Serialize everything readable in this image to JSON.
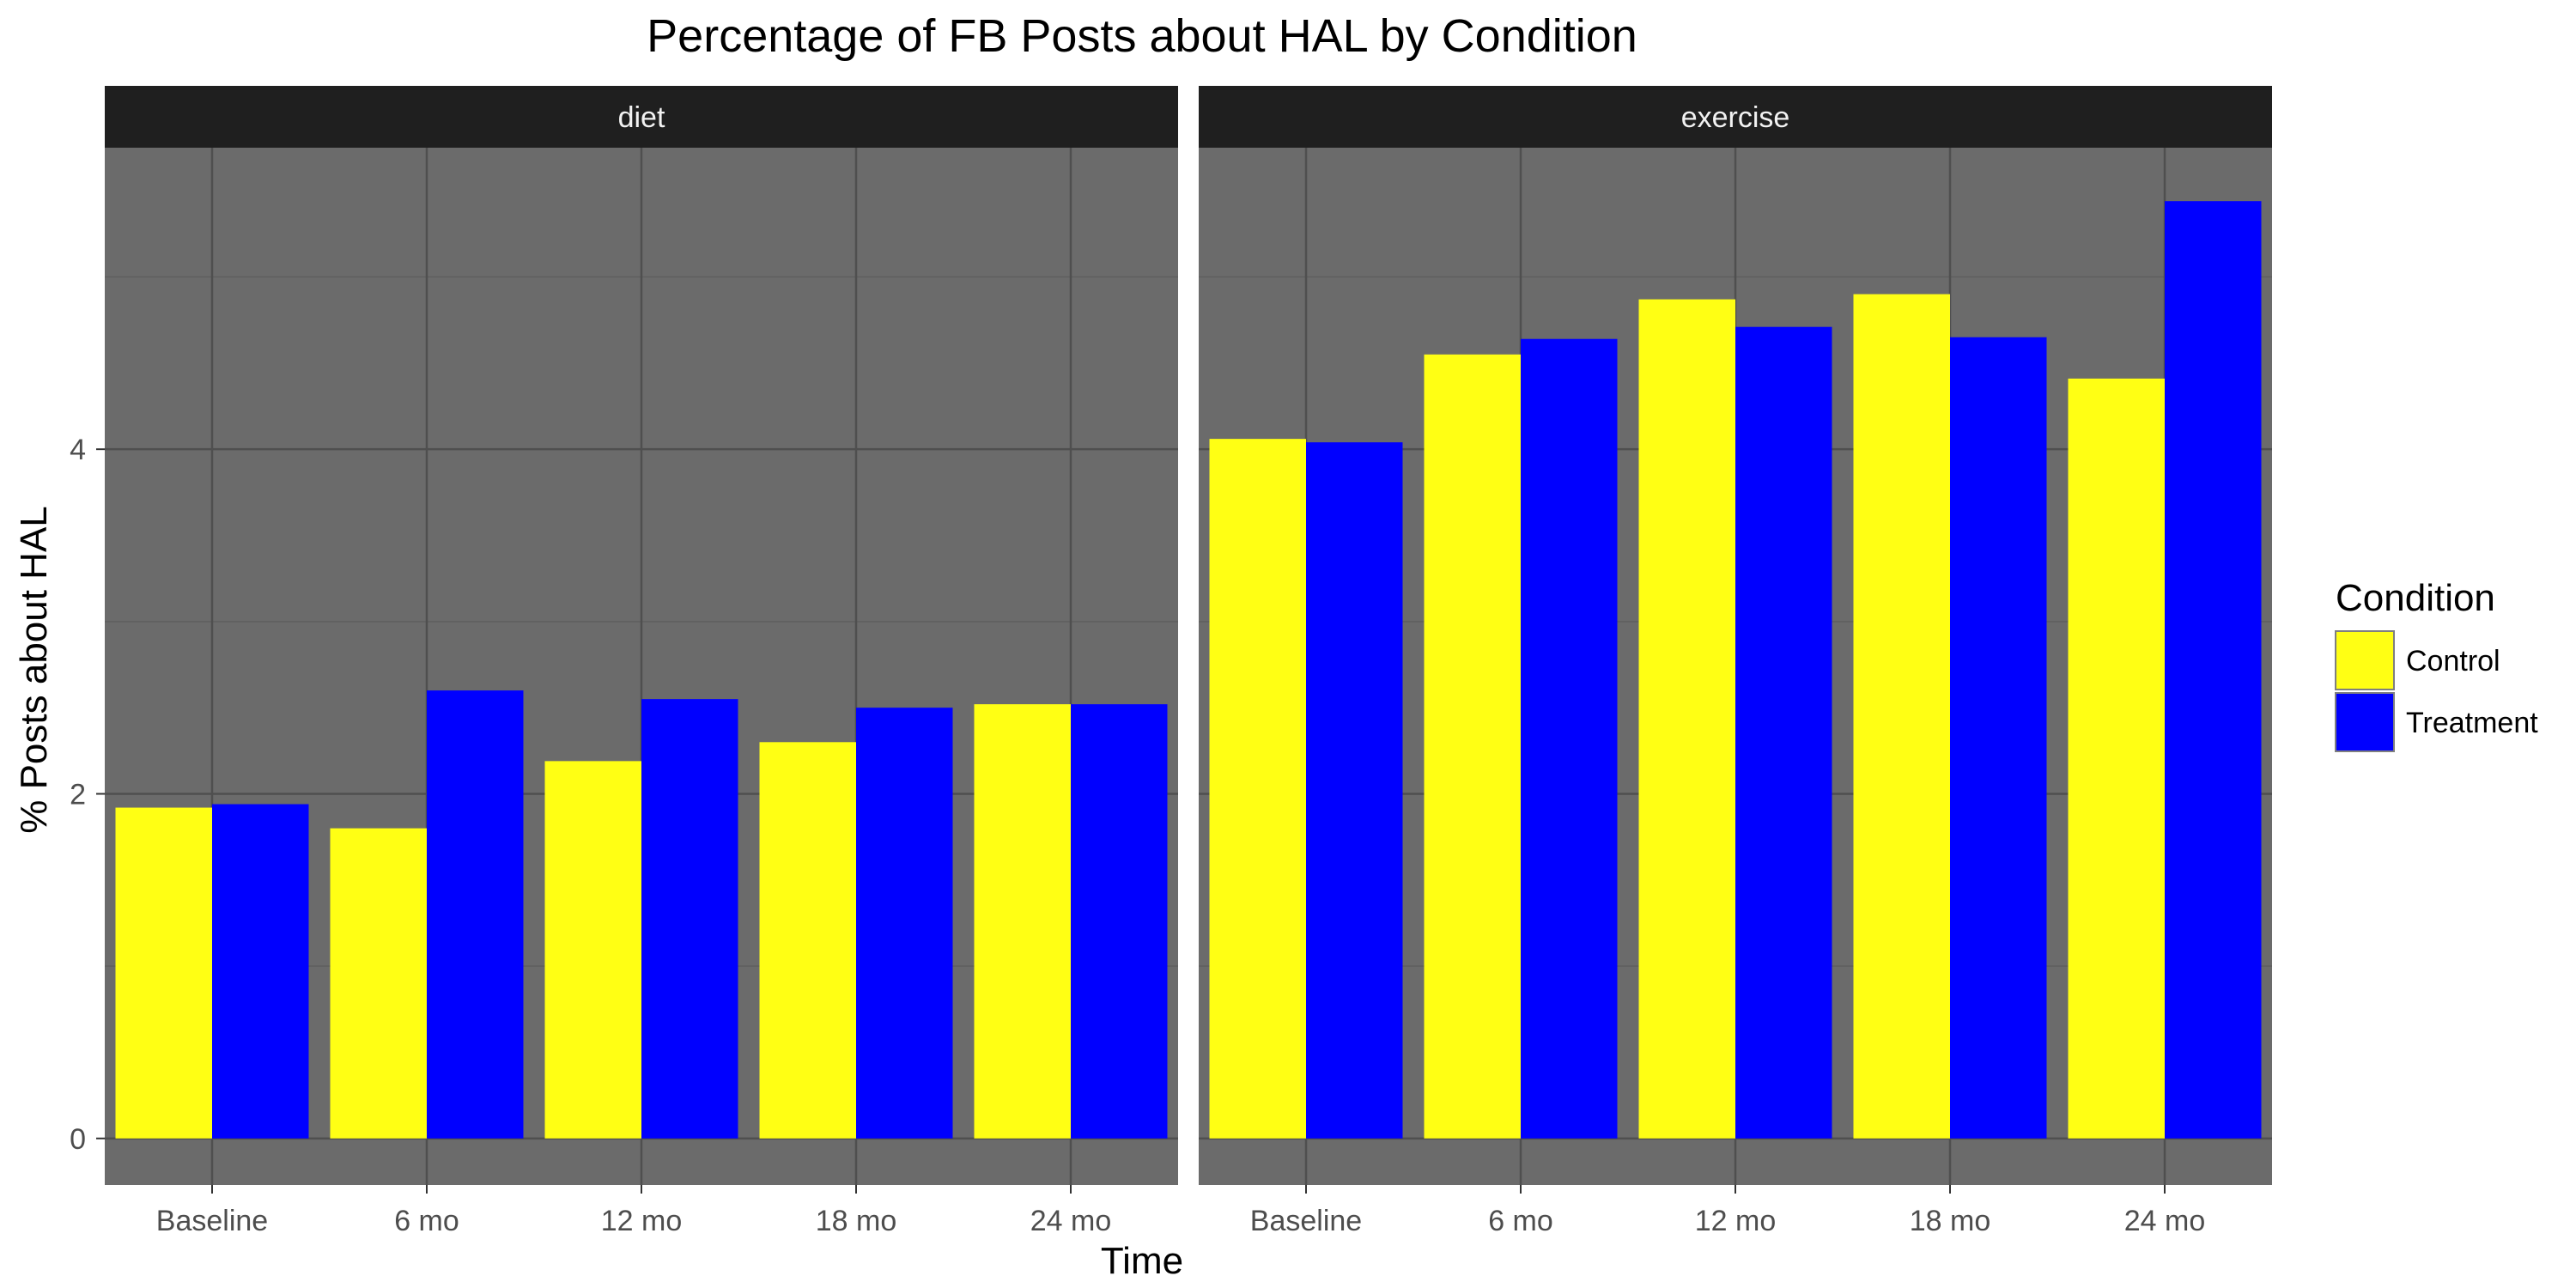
{
  "chart_data": {
    "type": "bar",
    "title": "Percentage of FB Posts about HAL by Condition",
    "xlabel": "Time",
    "ylabel": "% Posts about HAL",
    "ylim": [
      -0.27,
      5.75
    ],
    "yticks": [
      0,
      2,
      4
    ],
    "categories": [
      "Baseline",
      "6 mo",
      "12 mo",
      "18 mo",
      "24 mo"
    ],
    "legend": {
      "title": "Condition",
      "position": "right",
      "entries": [
        {
          "name": "Control",
          "color": "#ffff14"
        },
        {
          "name": "Treatment",
          "color": "#0000ff"
        }
      ]
    },
    "panel_background": "#6b6b6b",
    "grid": true,
    "facets": [
      {
        "label": "diet",
        "series": [
          {
            "name": "Control",
            "color": "#ffff14",
            "values": [
              1.92,
              1.8,
              2.19,
              2.3,
              2.52
            ]
          },
          {
            "name": "Treatment",
            "color": "#0000ff",
            "values": [
              1.94,
              2.6,
              2.55,
              2.5,
              2.52
            ]
          }
        ]
      },
      {
        "label": "exercise",
        "series": [
          {
            "name": "Control",
            "color": "#ffff14",
            "values": [
              4.06,
              4.55,
              4.87,
              4.9,
              4.41
            ]
          },
          {
            "name": "Treatment",
            "color": "#0000ff",
            "values": [
              4.04,
              4.64,
              4.71,
              4.65,
              5.44
            ]
          }
        ]
      }
    ]
  }
}
